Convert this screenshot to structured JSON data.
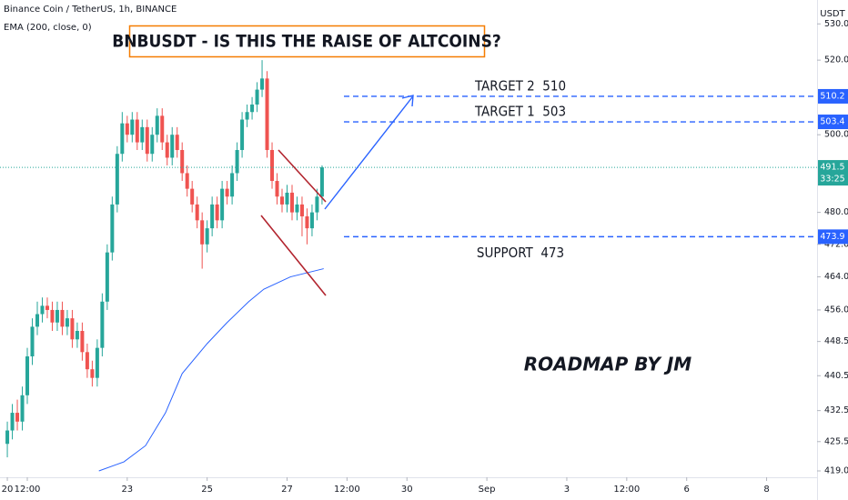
{
  "header": "Binance Coin / TetherUS, 1h, BINANCE",
  "ema_label": "EMA (200, close, 0)",
  "currency": "USDT",
  "title": "BNBUSDT - IS THIS THE RAISE OF ALTCOINS?",
  "signature": "ROADMAP BY JM",
  "chart_data": {
    "type": "candlestick",
    "log_scale": true,
    "grid": false,
    "up_color": "#26a69a",
    "down_color": "#ef5350",
    "xlim": [
      -4.4,
      486.3
    ],
    "xticks": [
      {
        "value": 0,
        "label": "20"
      },
      {
        "value": 12,
        "label": "12:00"
      },
      {
        "value": 72,
        "label": "23"
      },
      {
        "value": 120,
        "label": "25"
      },
      {
        "value": 168,
        "label": "27"
      },
      {
        "value": 204,
        "label": "12:00"
      },
      {
        "value": 240,
        "label": "30"
      },
      {
        "value": 288,
        "label": "Sep"
      },
      {
        "value": 336,
        "label": "3"
      },
      {
        "value": 372,
        "label": "12:00"
      },
      {
        "value": 408,
        "label": "6"
      },
      {
        "value": 456,
        "label": "8"
      }
    ],
    "ylim": [
      417.6,
      536.7
    ],
    "yticks": [
      {
        "value": 530,
        "label": "530.0"
      },
      {
        "value": 520,
        "label": "520.0"
      },
      {
        "value": 500,
        "label": "500.0"
      },
      {
        "value": 480,
        "label": "480.0"
      },
      {
        "value": 472,
        "label": "472.0"
      },
      {
        "value": 464,
        "label": "464.0"
      },
      {
        "value": 456,
        "label": "456.0"
      },
      {
        "value": 448.5,
        "label": "448.5"
      },
      {
        "value": 440.5,
        "label": "440.5"
      },
      {
        "value": 432.5,
        "label": "432.5"
      },
      {
        "value": 425.5,
        "label": "425.5"
      },
      {
        "value": 419,
        "label": "419.0"
      }
    ],
    "x": [
      0,
      3,
      6,
      9,
      12,
      15,
      18,
      21,
      24,
      27,
      30,
      33,
      36,
      39,
      42,
      45,
      48,
      51,
      54,
      57,
      60,
      63,
      66,
      69,
      72,
      75,
      78,
      81,
      84,
      87,
      90,
      93,
      96,
      99,
      102,
      105,
      108,
      111,
      114,
      117,
      120,
      123,
      126,
      129,
      132,
      135,
      138,
      141,
      144,
      147,
      150,
      153,
      156,
      159,
      162,
      165,
      168,
      171,
      174,
      177,
      180,
      183,
      186,
      189
    ],
    "open": [
      425,
      428,
      432,
      430,
      436,
      445,
      452,
      455,
      457,
      456,
      453,
      456,
      452,
      454,
      449,
      451,
      446,
      442,
      440,
      447,
      458,
      470,
      482,
      495,
      503,
      500,
      504,
      498,
      502,
      495,
      500,
      505,
      498,
      494,
      500,
      496,
      490,
      486,
      482,
      478,
      472,
      476,
      482,
      478,
      486,
      484,
      490,
      496,
      504,
      506,
      508,
      512,
      515,
      496,
      488,
      484,
      482,
      485,
      480,
      482,
      479,
      476,
      480,
      484
    ],
    "high": [
      430,
      434,
      435,
      438,
      447,
      454,
      458,
      459,
      459,
      458,
      458,
      458,
      456,
      456,
      453,
      453,
      448,
      444,
      449,
      460,
      472,
      484,
      497,
      506,
      505,
      506,
      506,
      504,
      504,
      502,
      507,
      507,
      500,
      502,
      502,
      498,
      492,
      488,
      484,
      480,
      478,
      484,
      484,
      488,
      488,
      492,
      498,
      506,
      508,
      510,
      514,
      520,
      517,
      498,
      490,
      486,
      487,
      487,
      484,
      484,
      481,
      482,
      486,
      492
    ],
    "low": [
      422,
      426,
      428,
      428,
      434,
      443,
      450,
      453,
      454,
      451,
      451,
      450,
      450,
      447,
      447,
      444,
      440,
      438,
      438,
      445,
      456,
      468,
      480,
      493,
      498,
      498,
      496,
      496,
      493,
      493,
      498,
      496,
      492,
      492,
      494,
      488,
      484,
      480,
      476,
      466,
      470,
      474,
      476,
      476,
      482,
      482,
      488,
      494,
      502,
      504,
      506,
      510,
      494,
      486,
      482,
      480,
      480,
      478,
      478,
      474,
      472,
      474,
      478,
      482
    ],
    "close": [
      428,
      432,
      430,
      436,
      445,
      452,
      455,
      457,
      456,
      453,
      456,
      452,
      454,
      449,
      451,
      446,
      442,
      440,
      447,
      458,
      470,
      482,
      495,
      503,
      500,
      504,
      498,
      502,
      495,
      500,
      505,
      498,
      494,
      500,
      496,
      490,
      486,
      482,
      478,
      472,
      476,
      482,
      478,
      486,
      484,
      490,
      496,
      504,
      506,
      508,
      512,
      515,
      496,
      488,
      484,
      482,
      485,
      480,
      482,
      479,
      476,
      480,
      484,
      491.5
    ],
    "ema": {
      "color": "#2962ff",
      "x": [
        55,
        70,
        83,
        95,
        105,
        120,
        132,
        145,
        154,
        170,
        190
      ],
      "values": [
        419,
        421,
        424.6,
        432,
        441,
        448,
        453,
        458,
        461,
        464,
        466
      ]
    },
    "levels": [
      {
        "label": "TARGET 2  510",
        "price": 510.2,
        "price_label": "510.2"
      },
      {
        "label": "TARGET 1  503",
        "price": 503.4,
        "price_label": "503.4"
      },
      {
        "label": "SUPPORT  473",
        "price": 473.9,
        "price_label": "473.9"
      }
    ],
    "level_color": "#2962ff",
    "last_price": {
      "value": 491.5,
      "label": "491.5",
      "countdown": "33:25"
    }
  }
}
